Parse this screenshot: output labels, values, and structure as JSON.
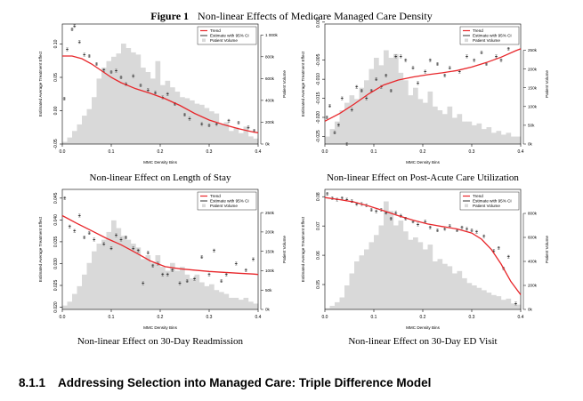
{
  "figure": {
    "label": "Figure 1",
    "title": "Non-linear Effects of Medicare Managed Care Density"
  },
  "section": {
    "number": "8.1.1",
    "title": "Addressing Selection into Managed Care: Triple Difference Model"
  },
  "legend": {
    "trend": "Trend",
    "ci": "Estimate with 95% CI",
    "volume": "Patient Volume"
  },
  "colors": {
    "trend": "#e8262a",
    "bars": "#d9d9d9",
    "estimate": "#555555"
  },
  "chart_data": [
    {
      "type": "bar",
      "caption": "Non-linear Effect on Length of Stay",
      "xlabel": "MMC Density Bins",
      "ylabel": "Estimated Average Treatment Effect",
      "ylabel_right": "Patient Volume",
      "xlim": [
        0,
        0.4
      ],
      "x_ticks": [
        "0.0",
        "0.1",
        "0.2",
        "0.3",
        "0.4"
      ],
      "ylim": [
        -0.05,
        0.13
      ],
      "y_ticks": [
        "-0.05",
        "0.00",
        "0.05",
        "0.10"
      ],
      "y2lim": [
        0,
        1100000
      ],
      "y2_ticks": [
        "0k",
        "200k",
        "400k",
        "600k",
        "800k",
        "1 000k"
      ],
      "volume": [
        20000,
        60000,
        120000,
        180000,
        260000,
        320000,
        430000,
        600000,
        700000,
        760000,
        800000,
        830000,
        920000,
        880000,
        840000,
        820000,
        700000,
        660000,
        600000,
        760000,
        540000,
        580000,
        520000,
        480000,
        430000,
        420000,
        400000,
        370000,
        360000,
        330000,
        300000,
        280000,
        180000,
        200000,
        120000,
        150000,
        100000,
        160000,
        70000,
        50000
      ],
      "estimates": [
        [
          0.004,
          0.018
        ],
        [
          0.01,
          0.092
        ],
        [
          0.02,
          0.122
        ],
        [
          0.025,
          0.127
        ],
        [
          0.035,
          0.103
        ],
        [
          0.045,
          0.084
        ],
        [
          0.055,
          0.082
        ],
        [
          0.07,
          0.07
        ],
        [
          0.085,
          0.061
        ],
        [
          0.1,
          0.058
        ],
        [
          0.11,
          0.06
        ],
        [
          0.12,
          0.05
        ],
        [
          0.13,
          0.04
        ],
        [
          0.145,
          0.052
        ],
        [
          0.16,
          0.038
        ],
        [
          0.175,
          0.031
        ],
        [
          0.19,
          0.027
        ],
        [
          0.205,
          0.02
        ],
        [
          0.215,
          0.025
        ],
        [
          0.23,
          0.01
        ],
        [
          0.25,
          -0.006
        ],
        [
          0.26,
          -0.012
        ],
        [
          0.285,
          -0.02
        ],
        [
          0.3,
          -0.022
        ],
        [
          0.315,
          -0.02
        ],
        [
          0.34,
          -0.015
        ],
        [
          0.36,
          -0.018
        ],
        [
          0.38,
          -0.025
        ],
        [
          0.392,
          -0.03
        ]
      ],
      "trend": [
        [
          0.0,
          0.082
        ],
        [
          0.02,
          0.082
        ],
        [
          0.04,
          0.078
        ],
        [
          0.06,
          0.07
        ],
        [
          0.08,
          0.06
        ],
        [
          0.1,
          0.05
        ],
        [
          0.12,
          0.042
        ],
        [
          0.15,
          0.033
        ],
        [
          0.18,
          0.026
        ],
        [
          0.21,
          0.018
        ],
        [
          0.24,
          0.008
        ],
        [
          0.27,
          -0.004
        ],
        [
          0.3,
          -0.014
        ],
        [
          0.33,
          -0.021
        ],
        [
          0.36,
          -0.027
        ],
        [
          0.39,
          -0.032
        ],
        [
          0.4,
          -0.033
        ]
      ]
    },
    {
      "type": "bar",
      "caption": "Non-linear Effect on Post-Acute Care Utilization",
      "xlabel": "MMC Density Bins",
      "ylabel": "Estimated Average Treatment Effect",
      "ylabel_right": "Patient Volume",
      "xlim": [
        0,
        0.4
      ],
      "x_ticks": [
        "0.0",
        "0.1",
        "0.2",
        "0.3",
        "0.4"
      ],
      "ylim": [
        -0.027,
        0.0045
      ],
      "y_ticks": [
        "-0.025",
        "-0.020",
        "-0.015",
        "-0.010",
        "-0.005",
        "0.005"
      ],
      "y2lim": [
        0,
        320000
      ],
      "y2_ticks": [
        "0k",
        "50k",
        "100k",
        "150k",
        "200k",
        "250k"
      ],
      "volume": [
        20000,
        40000,
        60000,
        90000,
        110000,
        130000,
        120000,
        150000,
        170000,
        200000,
        230000,
        210000,
        250000,
        230000,
        240000,
        190000,
        170000,
        130000,
        150000,
        120000,
        110000,
        140000,
        100000,
        90000,
        80000,
        100000,
        70000,
        80000,
        60000,
        60000,
        50000,
        55000,
        40000,
        45000,
        30000,
        35000,
        25000,
        30000,
        20000,
        20000
      ],
      "estimates": [
        [
          0.004,
          -0.02
        ],
        [
          0.01,
          -0.017
        ],
        [
          0.02,
          -0.024
        ],
        [
          0.028,
          -0.022
        ],
        [
          0.035,
          -0.015
        ],
        [
          0.045,
          -0.027
        ],
        [
          0.055,
          -0.018
        ],
        [
          0.065,
          -0.012
        ],
        [
          0.075,
          -0.013
        ],
        [
          0.085,
          -0.015
        ],
        [
          0.095,
          -0.013
        ],
        [
          0.105,
          -0.01
        ],
        [
          0.115,
          -0.012
        ],
        [
          0.125,
          -0.009
        ],
        [
          0.135,
          -0.013
        ],
        [
          0.145,
          -0.004
        ],
        [
          0.155,
          -0.004
        ],
        [
          0.165,
          -0.005
        ],
        [
          0.18,
          -0.007
        ],
        [
          0.19,
          -0.011
        ],
        [
          0.205,
          -0.008
        ],
        [
          0.215,
          -0.005
        ],
        [
          0.23,
          -0.006
        ],
        [
          0.245,
          -0.009
        ],
        [
          0.255,
          -0.007
        ],
        [
          0.275,
          -0.008
        ],
        [
          0.29,
          -0.004
        ],
        [
          0.305,
          -0.005
        ],
        [
          0.32,
          -0.003
        ],
        [
          0.33,
          -0.006
        ],
        [
          0.35,
          -0.004
        ],
        [
          0.36,
          -0.005
        ],
        [
          0.375,
          -0.002
        ],
        [
          0.385,
          0.002
        ]
      ],
      "trend": [
        [
          0.0,
          -0.021
        ],
        [
          0.03,
          -0.019
        ],
        [
          0.06,
          -0.0165
        ],
        [
          0.09,
          -0.0138
        ],
        [
          0.12,
          -0.0115
        ],
        [
          0.15,
          -0.0102
        ],
        [
          0.18,
          -0.0094
        ],
        [
          0.21,
          -0.0088
        ],
        [
          0.24,
          -0.0083
        ],
        [
          0.27,
          -0.0077
        ],
        [
          0.3,
          -0.0068
        ],
        [
          0.33,
          -0.0056
        ],
        [
          0.36,
          -0.0042
        ],
        [
          0.39,
          -0.0025
        ],
        [
          0.4,
          -0.002
        ]
      ]
    },
    {
      "type": "bar",
      "caption": "Non-linear Effect on 30-Day Readmission",
      "xlabel": "MMC Density Bins",
      "ylabel": "Estimated Average Treatment Effect",
      "ylabel_right": "Patient Volume",
      "xlim": [
        0,
        0.4
      ],
      "x_ticks": [
        "0.0",
        "0.1",
        "0.2",
        "0.3",
        "0.4"
      ],
      "ylim": [
        0.0195,
        0.047
      ],
      "y_ticks": [
        "0.020",
        "0.025",
        "0.030",
        "0.035",
        "0.040",
        "0.045"
      ],
      "y2lim": [
        0,
        310000
      ],
      "y2_ticks": [
        "0k",
        "50k",
        "100k",
        "150k",
        "200k",
        "250k"
      ],
      "volume": [
        10000,
        20000,
        40000,
        60000,
        90000,
        120000,
        150000,
        170000,
        180000,
        200000,
        230000,
        210000,
        190000,
        180000,
        170000,
        160000,
        130000,
        140000,
        120000,
        140000,
        110000,
        100000,
        120000,
        100000,
        110000,
        90000,
        80000,
        90000,
        70000,
        60000,
        65000,
        50000,
        45000,
        40000,
        30000,
        30000,
        25000,
        30000,
        20000,
        15000
      ],
      "estimates": [
        [
          0.005,
          0.045
        ],
        [
          0.015,
          0.0385
        ],
        [
          0.025,
          0.0375
        ],
        [
          0.035,
          0.041
        ],
        [
          0.045,
          0.036
        ],
        [
          0.055,
          0.037
        ],
        [
          0.065,
          0.0355
        ],
        [
          0.085,
          0.0345
        ],
        [
          0.1,
          0.0335
        ],
        [
          0.11,
          0.0365
        ],
        [
          0.12,
          0.0355
        ],
        [
          0.13,
          0.036
        ],
        [
          0.145,
          0.0335
        ],
        [
          0.155,
          0.033
        ],
        [
          0.165,
          0.0255
        ],
        [
          0.175,
          0.0325
        ],
        [
          0.185,
          0.0295
        ],
        [
          0.195,
          0.03
        ],
        [
          0.205,
          0.0275
        ],
        [
          0.215,
          0.0275
        ],
        [
          0.225,
          0.0285
        ],
        [
          0.24,
          0.0255
        ],
        [
          0.255,
          0.026
        ],
        [
          0.27,
          0.0265
        ],
        [
          0.285,
          0.0315
        ],
        [
          0.3,
          0.0275
        ],
        [
          0.31,
          0.033
        ],
        [
          0.325,
          0.026
        ],
        [
          0.335,
          0.0275
        ],
        [
          0.355,
          0.03
        ],
        [
          0.375,
          0.0285
        ],
        [
          0.39,
          0.031
        ]
      ],
      "trend": [
        [
          0.0,
          0.041
        ],
        [
          0.03,
          0.0392
        ],
        [
          0.06,
          0.0375
        ],
        [
          0.09,
          0.0358
        ],
        [
          0.12,
          0.0343
        ],
        [
          0.15,
          0.0325
        ],
        [
          0.18,
          0.0306
        ],
        [
          0.21,
          0.0293
        ],
        [
          0.24,
          0.0288
        ],
        [
          0.27,
          0.0285
        ],
        [
          0.3,
          0.0282
        ],
        [
          0.33,
          0.028
        ],
        [
          0.36,
          0.0278
        ],
        [
          0.39,
          0.0276
        ],
        [
          0.4,
          0.0275
        ]
      ]
    },
    {
      "type": "bar",
      "caption": "Non-linear Effect on 30-Day ED Visit",
      "xlabel": "MMC Density Bins",
      "ylabel": "Estimated Average Treatment Effect",
      "ylabel_right": "Patient Volume",
      "xlim": [
        0,
        0.4
      ],
      "x_ticks": [
        "0.0",
        "0.1",
        "0.2",
        "0.3",
        "0.4"
      ],
      "ylim": [
        0.0415,
        0.0825
      ],
      "y_ticks": [
        "0.05",
        "0.06",
        "0.07",
        "0.08"
      ],
      "y2lim": [
        0,
        1000000
      ],
      "y2_ticks": [
        "0k",
        "200k",
        "400k",
        "600k",
        "800k"
      ],
      "volume": [
        10000,
        30000,
        60000,
        100000,
        200000,
        300000,
        400000,
        450000,
        500000,
        560000,
        620000,
        700000,
        900000,
        820000,
        700000,
        740000,
        650000,
        580000,
        600000,
        560000,
        500000,
        540000,
        400000,
        420000,
        380000,
        360000,
        300000,
        320000,
        260000,
        220000,
        200000,
        180000,
        160000,
        140000,
        120000,
        110000,
        80000,
        90000,
        50000,
        40000
      ],
      "estimates": [
        [
          0.005,
          0.081
        ],
        [
          0.015,
          0.0795
        ],
        [
          0.025,
          0.079
        ],
        [
          0.035,
          0.0795
        ],
        [
          0.045,
          0.079
        ],
        [
          0.055,
          0.0785
        ],
        [
          0.065,
          0.0775
        ],
        [
          0.075,
          0.0775
        ],
        [
          0.085,
          0.077
        ],
        [
          0.095,
          0.0755
        ],
        [
          0.105,
          0.075
        ],
        [
          0.115,
          0.0755
        ],
        [
          0.125,
          0.0745
        ],
        [
          0.135,
          0.0725
        ],
        [
          0.145,
          0.0745
        ],
        [
          0.155,
          0.0735
        ],
        [
          0.165,
          0.0725
        ],
        [
          0.18,
          0.0715
        ],
        [
          0.19,
          0.0705
        ],
        [
          0.205,
          0.0715
        ],
        [
          0.215,
          0.0695
        ],
        [
          0.23,
          0.0685
        ],
        [
          0.245,
          0.069
        ],
        [
          0.255,
          0.07
        ],
        [
          0.27,
          0.0685
        ],
        [
          0.28,
          0.0695
        ],
        [
          0.29,
          0.069
        ],
        [
          0.3,
          0.0685
        ],
        [
          0.31,
          0.068
        ],
        [
          0.325,
          0.0665
        ],
        [
          0.345,
          0.0615
        ],
        [
          0.355,
          0.0625
        ],
        [
          0.365,
          0.0555
        ],
        [
          0.375,
          0.0595
        ],
        [
          0.39,
          0.0435
        ]
      ],
      "trend": [
        [
          0.0,
          0.0797
        ],
        [
          0.03,
          0.079
        ],
        [
          0.06,
          0.0782
        ],
        [
          0.09,
          0.0768
        ],
        [
          0.12,
          0.0752
        ],
        [
          0.15,
          0.0735
        ],
        [
          0.18,
          0.072
        ],
        [
          0.21,
          0.0707
        ],
        [
          0.24,
          0.0698
        ],
        [
          0.27,
          0.069
        ],
        [
          0.3,
          0.0676
        ],
        [
          0.32,
          0.0655
        ],
        [
          0.34,
          0.062
        ],
        [
          0.36,
          0.057
        ],
        [
          0.38,
          0.051
        ],
        [
          0.4,
          0.0465
        ]
      ]
    }
  ]
}
